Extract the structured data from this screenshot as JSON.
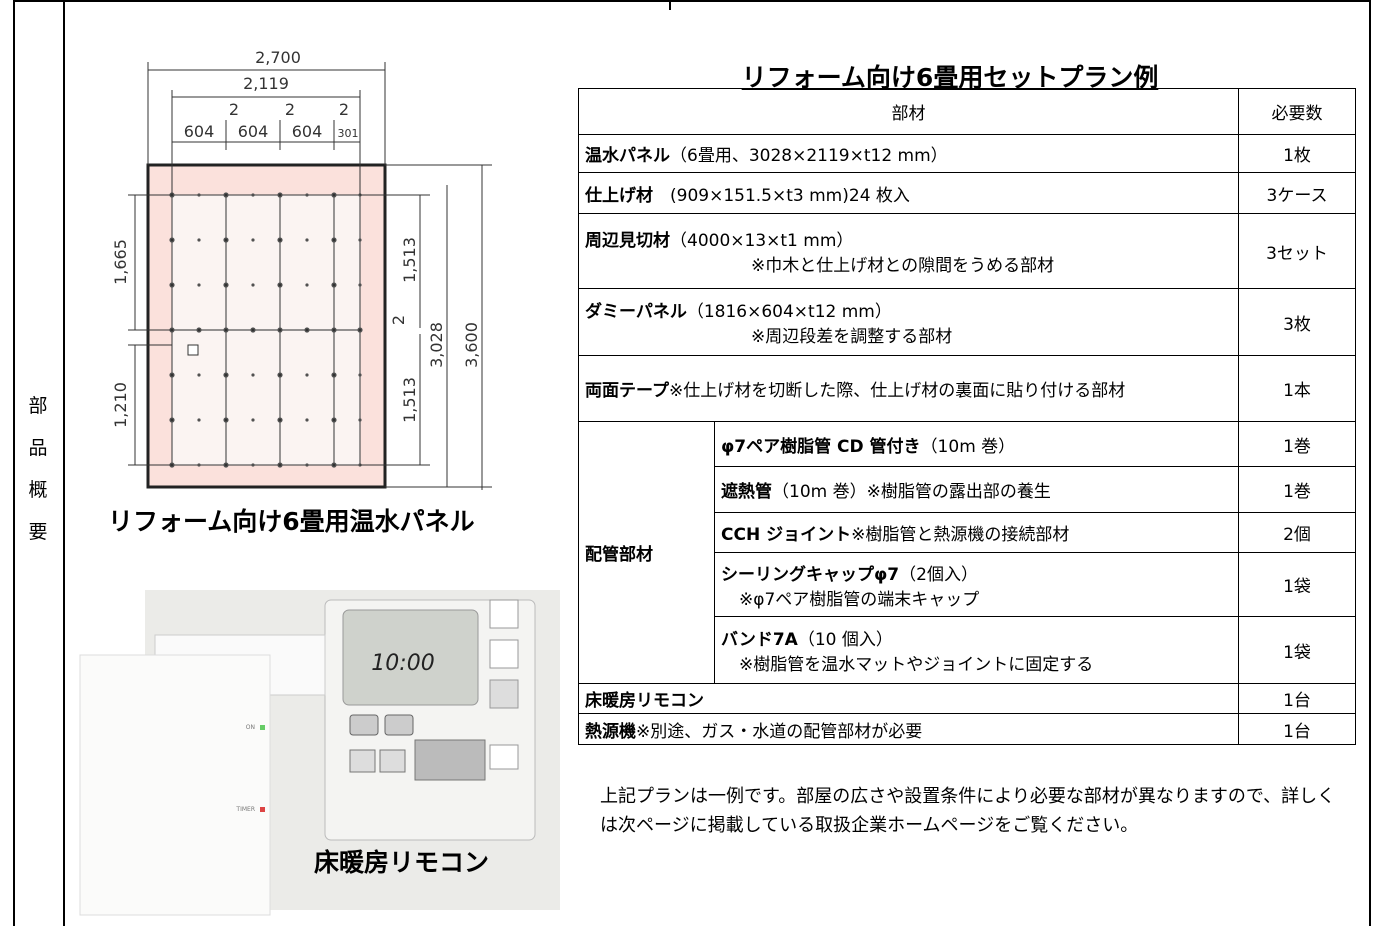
{
  "side_label": "部品概要",
  "diagram": {
    "total_width": "2,700",
    "panel_width": "2,119",
    "gaps": [
      "2",
      "2",
      "2"
    ],
    "columns": [
      "604",
      "604",
      "604",
      "301"
    ],
    "left": [
      "1,665",
      "1,210"
    ],
    "right": [
      "1,513",
      "1,513"
    ],
    "mid_gap": "2",
    "panel_height": "3,028",
    "total_height": "3,600",
    "caption": "リフォーム向け6畳用温水パネル"
  },
  "remote": {
    "display": "10:00",
    "labels": [
      "ON",
      "TIMER"
    ],
    "caption": "床暖房リモコン"
  },
  "plan": {
    "title": "リフォーム向け6畳用セットプラン例",
    "header": [
      "部材",
      "必要数"
    ],
    "rows": [
      {
        "name": "温水パネル",
        "detail": "（6畳用、3028×2119×t12 mm）",
        "qty": "1枚"
      },
      {
        "name": "仕上げ材",
        "detail": "　(909×151.5×t3 mm)24 枚入",
        "qty": "3ケース"
      },
      {
        "name": "周辺見切材",
        "detail": "（4000×13×t1 mm）",
        "note": "※巾木と仕上げ材との隙間をうめる部材",
        "qty": "3セット"
      },
      {
        "name": "ダミーパネル",
        "detail": "（1816×604×t12 mm）",
        "note": "※周辺段差を調整する部材",
        "qty": "3枚"
      },
      {
        "name": "両面テープ",
        "detail": "※仕上げ材を切断した際、仕上げ材の裏面に貼り付ける部材",
        "qty": "1本"
      }
    ],
    "group": {
      "label": "配管部材",
      "rows": [
        {
          "name": "φ7ペア樹脂管 CD 管付き",
          "detail": "（10m 巻）",
          "qty": "1巻"
        },
        {
          "name": "遮熱管",
          "detail": "（10m 巻）※樹脂管の露出部の養生",
          "qty": "1巻"
        },
        {
          "name": "CCH ジョイント",
          "detail": "※樹脂管と熱源機の接続部材",
          "qty": "2個"
        },
        {
          "name": "シーリングキャップφ7",
          "detail": "（2個入）",
          "note": "※φ7ペア樹脂管の端末キャップ",
          "qty": "1袋"
        },
        {
          "name": "バンド7A",
          "detail": "（10 個入）",
          "note": "※樹脂管を温水マットやジョイントに固定する",
          "qty": "1袋"
        }
      ]
    },
    "tail": [
      {
        "name": "床暖房リモコン",
        "qty": "1台"
      },
      {
        "name": "熱源機",
        "detail": "※別途、ガス・水道の配管部材が必要",
        "qty": "1台"
      }
    ],
    "note": "上記プランは一例です。部屋の広さや設置条件により必要な部材が異なりますので、詳しくは次ページに掲載している取扱企業ホームページをご覧ください。"
  }
}
